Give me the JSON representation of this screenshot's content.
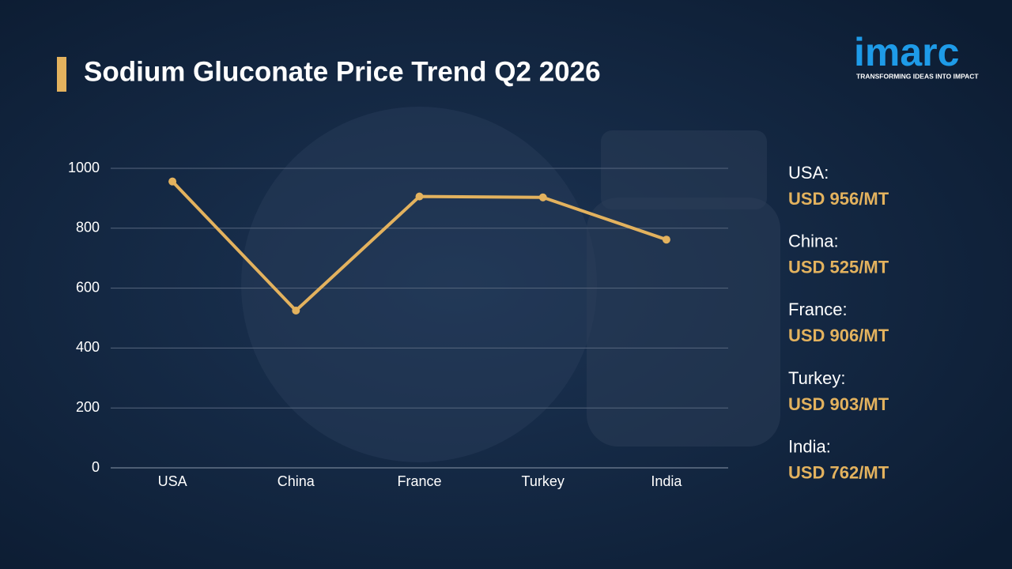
{
  "chart_data": {
    "type": "line",
    "title": "Sodium Gluconate Price Trend Q2 2026",
    "categories": [
      "USA",
      "China",
      "France",
      "Turkey",
      "India"
    ],
    "values": [
      956,
      525,
      906,
      903,
      762
    ],
    "value_labels": [
      "USD 956/MT",
      "USD 525/MT",
      "USD 906/MT",
      "USD 903/MT",
      "USD 762/MT"
    ],
    "side_labels": [
      "USA:",
      "China:",
      "France:",
      "Turkey:",
      "India:"
    ],
    "color": "#e3b25e",
    "ylim": [
      0,
      1000
    ],
    "yticks": [
      0,
      200,
      400,
      600,
      800,
      1000
    ],
    "grid": true
  },
  "logo": {
    "name": "imarc",
    "tagline": "TRANSFORMING IDEAS INTO IMPACT"
  }
}
